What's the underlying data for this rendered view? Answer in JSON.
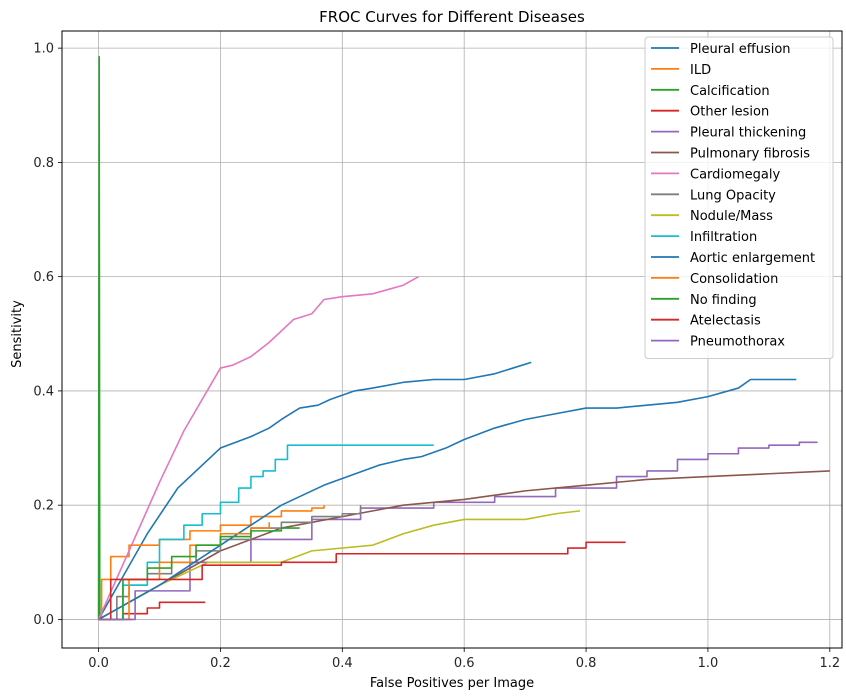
{
  "chart_data": {
    "type": "line",
    "title": "FROC Curves for Different Diseases",
    "xlabel": "False Positives per Image",
    "ylabel": "Sensitivity",
    "xlim": [
      -0.06,
      1.22
    ],
    "ylim": [
      -0.05,
      1.03
    ],
    "xticks": [
      0.0,
      0.2,
      0.4,
      0.6,
      0.8,
      1.0,
      1.2
    ],
    "xtick_labels": [
      "0.0",
      "0.2",
      "0.4",
      "0.6",
      "0.8",
      "1.0",
      "1.2"
    ],
    "yticks": [
      0.0,
      0.2,
      0.4,
      0.6,
      0.8,
      1.0
    ],
    "ytick_labels": [
      "0.0",
      "0.2",
      "0.4",
      "0.6",
      "0.8",
      "1.0"
    ],
    "grid": true,
    "legend_position": "top-right",
    "series": [
      {
        "name": "Pleural effusion",
        "color": "#1f77b4",
        "step": false,
        "x": [
          0.0,
          0.08,
          0.13,
          0.2,
          0.25,
          0.28,
          0.3,
          0.33,
          0.36,
          0.38,
          0.42,
          0.45,
          0.5,
          0.55,
          0.6,
          0.65,
          0.68,
          0.71
        ],
        "y": [
          0.0,
          0.15,
          0.23,
          0.3,
          0.32,
          0.335,
          0.35,
          0.37,
          0.375,
          0.385,
          0.4,
          0.405,
          0.415,
          0.42,
          0.42,
          0.43,
          0.44,
          0.45
        ]
      },
      {
        "name": "ILD",
        "color": "#ff7f0e",
        "step": true,
        "x": [
          0.0,
          0.005,
          0.02,
          0.05,
          0.1,
          0.15,
          0.2,
          0.25,
          0.3,
          0.35,
          0.37
        ],
        "y": [
          0.0,
          0.07,
          0.11,
          0.13,
          0.14,
          0.155,
          0.165,
          0.18,
          0.19,
          0.195,
          0.2
        ]
      },
      {
        "name": "Calcification",
        "color": "#2ca02c",
        "step": false,
        "x": [
          0.0,
          0.001,
          0.002
        ],
        "y": [
          0.0,
          0.985,
          0.0
        ]
      },
      {
        "name": "Other lesion",
        "color": "#d62728",
        "step": true,
        "x": [
          0.0,
          0.04,
          0.08,
          0.1,
          0.175
        ],
        "y": [
          0.0,
          0.01,
          0.02,
          0.03,
          0.03
        ]
      },
      {
        "name": "Pleural thickening",
        "color": "#9467bd",
        "step": true,
        "x": [
          0.0,
          0.06,
          0.15,
          0.25,
          0.35,
          0.43,
          0.55,
          0.65,
          0.75,
          0.85,
          0.9,
          0.95,
          1.0,
          1.05,
          1.1,
          1.15,
          1.18
        ],
        "y": [
          0.0,
          0.05,
          0.1,
          0.14,
          0.175,
          0.195,
          0.205,
          0.215,
          0.23,
          0.25,
          0.26,
          0.28,
          0.29,
          0.3,
          0.305,
          0.31,
          0.31
        ]
      },
      {
        "name": "Pulmonary fibrosis",
        "color": "#8c564b",
        "step": false,
        "x": [
          0.0,
          0.1,
          0.2,
          0.3,
          0.4,
          0.45,
          0.5,
          0.6,
          0.7,
          0.8,
          0.9,
          1.0,
          1.1,
          1.2
        ],
        "y": [
          0.0,
          0.06,
          0.12,
          0.16,
          0.18,
          0.19,
          0.2,
          0.21,
          0.225,
          0.235,
          0.245,
          0.25,
          0.255,
          0.26
        ]
      },
      {
        "name": "Cardiomegaly",
        "color": "#e377c2",
        "step": false,
        "x": [
          0.0,
          0.05,
          0.1,
          0.14,
          0.2,
          0.22,
          0.25,
          0.28,
          0.3,
          0.32,
          0.35,
          0.37,
          0.4,
          0.45,
          0.5,
          0.525
        ],
        "y": [
          0.0,
          0.12,
          0.24,
          0.33,
          0.44,
          0.445,
          0.46,
          0.485,
          0.505,
          0.525,
          0.535,
          0.56,
          0.565,
          0.57,
          0.585,
          0.6
        ]
      },
      {
        "name": "Lung Opacity",
        "color": "#7f7f7f",
        "step": true,
        "x": [
          0.0,
          0.03,
          0.05,
          0.08,
          0.12,
          0.16,
          0.2,
          0.25,
          0.3,
          0.35,
          0.4,
          0.43
        ],
        "y": [
          0.0,
          0.04,
          0.06,
          0.08,
          0.1,
          0.12,
          0.14,
          0.16,
          0.17,
          0.18,
          0.185,
          0.2
        ]
      },
      {
        "name": "Nodule/Mass",
        "color": "#bcbd22",
        "step": false,
        "x": [
          0.0,
          0.1,
          0.18,
          0.3,
          0.35,
          0.45,
          0.5,
          0.55,
          0.6,
          0.65,
          0.7,
          0.75,
          0.79
        ],
        "y": [
          0.0,
          0.06,
          0.1,
          0.1,
          0.12,
          0.13,
          0.15,
          0.165,
          0.175,
          0.175,
          0.175,
          0.185,
          0.19
        ]
      },
      {
        "name": "Infiltration",
        "color": "#17becf",
        "step": true,
        "x": [
          0.0,
          0.04,
          0.08,
          0.1,
          0.14,
          0.17,
          0.2,
          0.23,
          0.25,
          0.27,
          0.29,
          0.31,
          0.55
        ],
        "y": [
          0.0,
          0.06,
          0.1,
          0.14,
          0.165,
          0.185,
          0.205,
          0.23,
          0.25,
          0.26,
          0.28,
          0.305,
          0.305
        ]
      },
      {
        "name": "Aortic enlargement",
        "color": "#1f77b4",
        "step": false,
        "x": [
          0.0,
          0.1,
          0.2,
          0.3,
          0.37,
          0.46,
          0.5,
          0.53,
          0.57,
          0.6,
          0.65,
          0.7,
          0.75,
          0.8,
          0.85,
          0.9,
          0.95,
          1.0,
          1.05,
          1.07,
          1.145
        ],
        "y": [
          0.0,
          0.06,
          0.13,
          0.2,
          0.235,
          0.27,
          0.28,
          0.285,
          0.3,
          0.315,
          0.335,
          0.35,
          0.36,
          0.37,
          0.37,
          0.375,
          0.38,
          0.39,
          0.405,
          0.42,
          0.42
        ]
      },
      {
        "name": "Consolidation",
        "color": "#ff7f0e",
        "step": true,
        "x": [
          0.0,
          0.05,
          0.1,
          0.15,
          0.2,
          0.25,
          0.28
        ],
        "y": [
          0.0,
          0.07,
          0.1,
          0.13,
          0.15,
          0.16,
          0.17
        ]
      },
      {
        "name": "No finding",
        "color": "#2ca02c",
        "step": true,
        "x": [
          0.0,
          0.04,
          0.08,
          0.12,
          0.16,
          0.2,
          0.25,
          0.3,
          0.33
        ],
        "y": [
          0.0,
          0.07,
          0.09,
          0.11,
          0.13,
          0.145,
          0.155,
          0.16,
          0.16
        ]
      },
      {
        "name": "Atelectasis",
        "color": "#d62728",
        "step": true,
        "x": [
          0.0,
          0.02,
          0.1,
          0.17,
          0.3,
          0.38,
          0.39,
          0.5,
          0.6,
          0.75,
          0.77,
          0.8,
          0.865
        ],
        "y": [
          0.0,
          0.07,
          0.07,
          0.095,
          0.1,
          0.1,
          0.115,
          0.115,
          0.115,
          0.115,
          0.125,
          0.135,
          0.135
        ]
      },
      {
        "name": "Pneumothorax",
        "color": "#9467bd",
        "step": false,
        "x": [
          0.0,
          0.055
        ],
        "y": [
          0.0,
          0.0
        ]
      }
    ]
  }
}
